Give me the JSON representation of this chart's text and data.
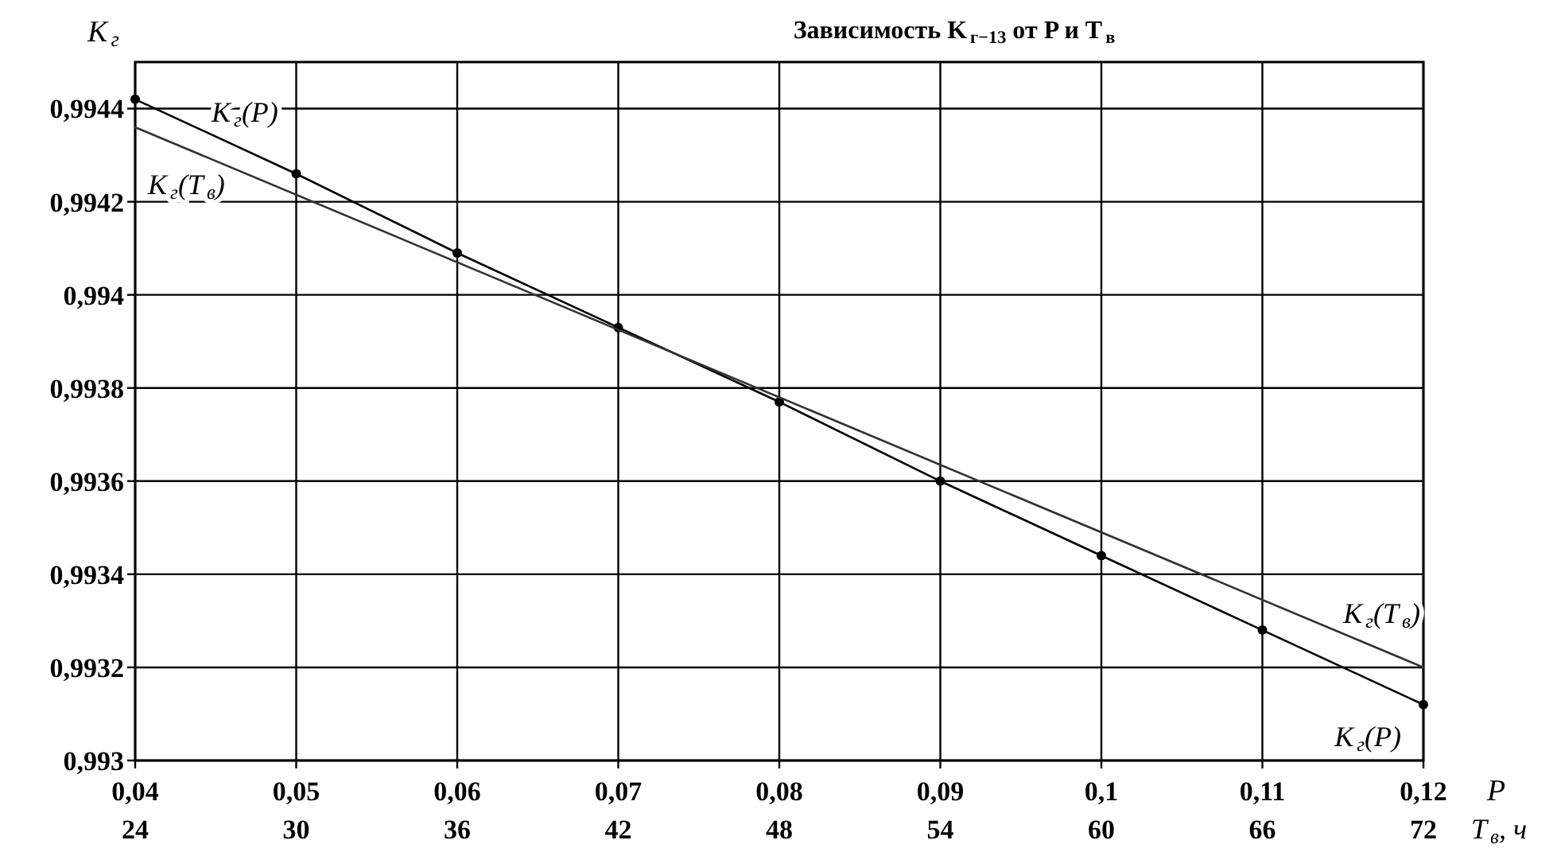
{
  "chart_data": {
    "type": "line",
    "title": "Зависимость K$_{г−13}$ от P и T$_{в}$",
    "ylabel": "K$_{г}$",
    "xlabel": "P",
    "x2label": "T$_{в}$, ч",
    "xlim": [
      0.04,
      0.12
    ],
    "xticks": [
      {
        "value": 0.04,
        "label": "0,04"
      },
      {
        "value": 0.05,
        "label": "0,05"
      },
      {
        "value": 0.06,
        "label": "0,06"
      },
      {
        "value": 0.07,
        "label": "0,07"
      },
      {
        "value": 0.08,
        "label": "0,08"
      },
      {
        "value": 0.09,
        "label": "0,09"
      },
      {
        "value": 0.1,
        "label": "0,1"
      },
      {
        "value": 0.11,
        "label": "0,11"
      },
      {
        "value": 0.12,
        "label": "0,12"
      }
    ],
    "x2lim": [
      24,
      72
    ],
    "x2ticks": [
      24,
      30,
      36,
      42,
      48,
      54,
      60,
      66,
      72
    ],
    "ylim": [
      0.993,
      0.9945
    ],
    "yticks": [
      {
        "value": 0.993,
        "label": "0,993"
      },
      {
        "value": 0.9932,
        "label": "0,9932"
      },
      {
        "value": 0.9934,
        "label": "0,9934"
      },
      {
        "value": 0.9936,
        "label": "0,9936"
      },
      {
        "value": 0.9938,
        "label": "0,9938"
      },
      {
        "value": 0.994,
        "label": "0,994"
      },
      {
        "value": 0.9942,
        "label": "0,9942"
      },
      {
        "value": 0.9944,
        "label": "0,9944"
      }
    ],
    "grid": true,
    "series": [
      {
        "name": "K$_{г}$(P)",
        "color": "#000000",
        "marker": "circle",
        "x": [
          0.04,
          0.05,
          0.06,
          0.07,
          0.08,
          0.09,
          0.1,
          0.11,
          0.12
        ],
        "values": [
          0.99442,
          0.99426,
          0.99409,
          0.99393,
          0.99377,
          0.9936,
          0.99344,
          0.99328,
          0.99312
        ]
      },
      {
        "name": "K$_{г}$(T$_{в}$)",
        "color": "#333333",
        "axis": "x2",
        "x": [
          24,
          72
        ],
        "values": [
          0.99436,
          0.9932
        ]
      }
    ]
  }
}
